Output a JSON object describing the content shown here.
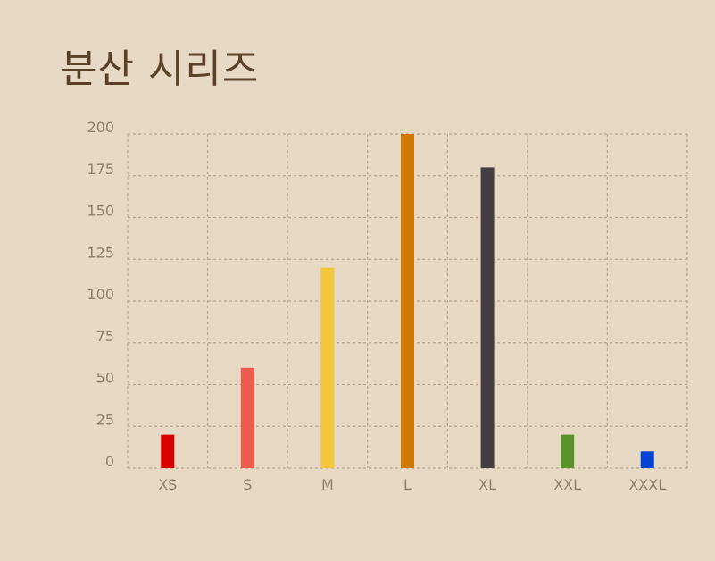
{
  "chart_data": {
    "type": "bar",
    "title": "분산 시리즈",
    "categories": [
      "XS",
      "S",
      "M",
      "L",
      "XL",
      "XXL",
      "XXXL"
    ],
    "values": [
      20,
      60,
      120,
      200,
      180,
      20,
      10
    ],
    "colors": [
      "#d60000",
      "#ef5b4c",
      "#f4c63d",
      "#d17905",
      "#453d3f",
      "#59922b",
      "#0544d3"
    ],
    "yticks": [
      "0",
      "25",
      "50",
      "75",
      "100",
      "125",
      "150",
      "175",
      "200"
    ],
    "ylim": [
      0,
      200
    ],
    "grid": true,
    "xlabel": "",
    "ylabel": ""
  }
}
